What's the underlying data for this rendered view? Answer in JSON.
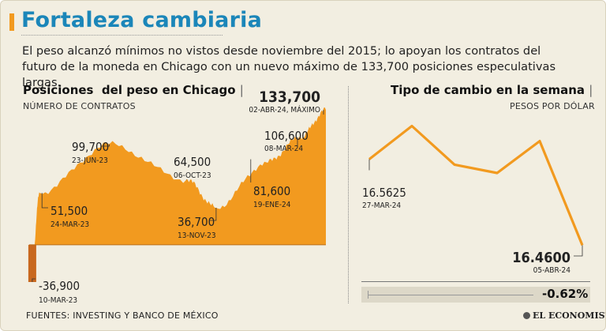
{
  "title": "Fortaleza cambiaria",
  "subtitle": "El peso alcanzó mínimos no vistos desde noviembre del 2015; lo apoyan los contratos del futuro de la moneda en Chicago con un nuevo máximo de 133,700 posiciones especulativas largas.",
  "colors": {
    "accent": "#f29a1f",
    "title": "#1b86b9",
    "area": "#f29a1f",
    "negative": "#c8681e",
    "background": "#f2eee1"
  },
  "chart_data": [
    {
      "type": "area",
      "title": "Posiciones  del peso en Chicago",
      "unit_label": "NÚMERO DE CONTRATOS",
      "x": [
        "10-MAR-23",
        "24-MAR-23",
        "23-JUN-23",
        "06-OCT-23",
        "13-NOV-23",
        "19-ENE-24",
        "08-MAR-24",
        "02-ABR-24"
      ],
      "values": [
        -36900,
        51500,
        99700,
        64500,
        36700,
        81600,
        106600,
        133700
      ],
      "annotations": [
        {
          "value": "-36,900",
          "date": "10-MAR-23"
        },
        {
          "value": "51,500",
          "date": "24-MAR-23"
        },
        {
          "value": "99,700",
          "date": "23-JUN-23"
        },
        {
          "value": "64,500",
          "date": "06-OCT-23"
        },
        {
          "value": "36,700",
          "date": "13-NOV-23"
        },
        {
          "value": "81,600",
          "date": "19-ENE-24"
        },
        {
          "value": "106,600",
          "date": "08-MAR-24"
        },
        {
          "value": "133,700",
          "date": "02-ABR-24, MÁXIMO"
        }
      ],
      "ylim": [
        -40000,
        140000
      ]
    },
    {
      "type": "line",
      "title": "Tipo de cambio en la semana",
      "unit_label": "PESOS POR DÓLAR",
      "x": [
        "27-MAR-24",
        "",
        "",
        "",
        "",
        "05-ABR-24"
      ],
      "values": [
        16.5625,
        16.602,
        16.556,
        16.546,
        16.584,
        16.46
      ],
      "annotations": [
        {
          "value": "16.5625",
          "date": "27-MAR-24"
        },
        {
          "value": "16.4600",
          "date": "05-ABR-24"
        }
      ],
      "change_pct": "-0.62%",
      "ylim": [
        16.45,
        16.61
      ]
    }
  ],
  "footer": {
    "sources": "FUENTES: INVESTING Y BANCO DE MÉXICO",
    "brand": "EL ECONOMISTA"
  }
}
